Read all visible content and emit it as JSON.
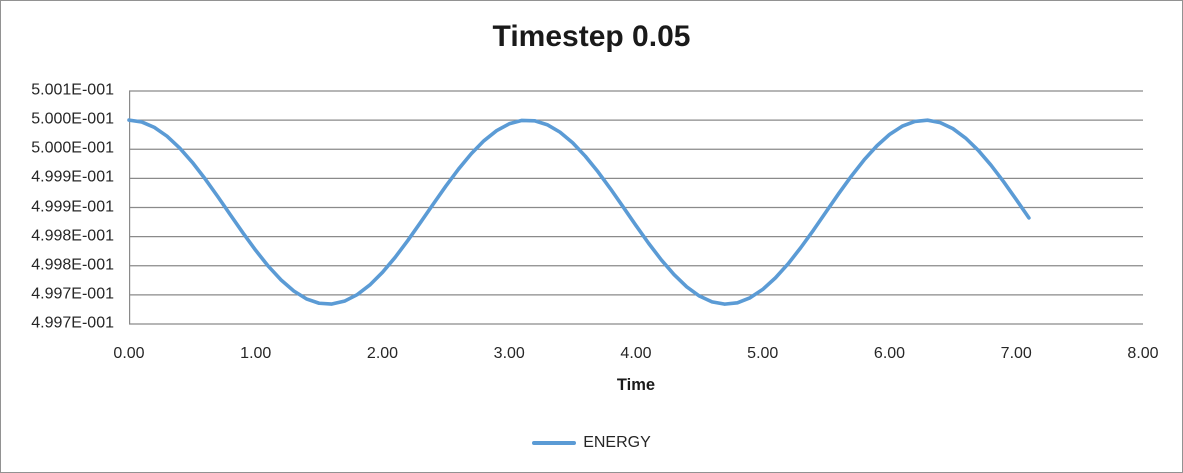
{
  "chart_data": {
    "type": "line",
    "title": "Timestep 0.05",
    "xlabel": "Time",
    "ylabel": "",
    "xlim": [
      0,
      8
    ],
    "ylim": [
      0.49965,
      0.50005
    ],
    "grid": "horizontal-major",
    "legend_position": "bottom-center",
    "x_tick_labels": [
      "0.00",
      "1.00",
      "2.00",
      "3.00",
      "4.00",
      "5.00",
      "6.00",
      "7.00",
      "8.00"
    ],
    "y_tick_labels": [
      "5.001E-001",
      "5.000E-001",
      "5.000E-001",
      "4.999E-001",
      "4.999E-001",
      "4.998E-001",
      "4.998E-001",
      "4.997E-001",
      "4.997E-001"
    ],
    "colors": {
      "line": "#5B9BD5",
      "gridline": "#8A8A8A",
      "axis_line": "#8A8A8A",
      "axis_text": "#262626",
      "title_text": "#1A1A1A",
      "frame": "#929292",
      "background": "#FFFFFF"
    },
    "series": [
      {
        "name": "ENERGY",
        "color": "#5B9BD5",
        "x": [
          0,
          0.1,
          0.2,
          0.3,
          0.4,
          0.5,
          0.6,
          0.7,
          0.8,
          0.9,
          1,
          1.1,
          1.2,
          1.3,
          1.4,
          1.5,
          1.6,
          1.7,
          1.8,
          1.9,
          2,
          2.1,
          2.2,
          2.3,
          2.4,
          2.5,
          2.6,
          2.7,
          2.8,
          2.9,
          3,
          3.1,
          3.2,
          3.3,
          3.4,
          3.5,
          3.6,
          3.7,
          3.8,
          3.9,
          4,
          4.1,
          4.2,
          4.3,
          4.4,
          4.5,
          4.6,
          4.7,
          4.8,
          4.9,
          5,
          5.1,
          5.2,
          5.3,
          5.4,
          5.5,
          5.6,
          5.7,
          5.8,
          5.9,
          6,
          6.1,
          6.2,
          6.3,
          6.4,
          6.5,
          6.6,
          6.7,
          6.8,
          6.9,
          7,
          7.1
        ],
        "y": [
          0.5,
          0.4999969,
          0.4999875,
          0.4999724,
          0.4999521,
          0.4999274,
          0.4998993,
          0.4998689,
          0.4998374,
          0.4998061,
          0.4997763,
          0.499749,
          0.4997255,
          0.4997066,
          0.4996931,
          0.4996856,
          0.4996843,
          0.4996892,
          0.4997003,
          0.499717,
          0.4997387,
          0.4997645,
          0.4997934,
          0.4998243,
          0.4998558,
          0.4998868,
          0.499916,
          0.4999423,
          0.4999645,
          0.4999819,
          0.4999937,
          0.4999995,
          0.4999989,
          0.4999921,
          0.4999794,
          0.4999611,
          0.4999381,
          0.4999113,
          0.4998817,
          0.4998505,
          0.499819,
          0.4997884,
          0.49976,
          0.4997348,
          0.4997139,
          0.499698,
          0.499688,
          0.4996841,
          0.4996864,
          0.499695,
          0.4997094,
          0.4997292,
          0.4997533,
          0.4997811,
          0.4998111,
          0.4998427,
          0.4998741,
          0.4999041,
          0.4999318,
          0.4999558,
          0.4999753,
          0.4999895,
          0.4999978,
          0.4999999,
          0.4999957,
          0.4999854,
          0.4999693,
          0.4999482,
          0.4999228,
          0.4998943,
          0.4998636,
          0.4998322
        ]
      }
    ]
  }
}
